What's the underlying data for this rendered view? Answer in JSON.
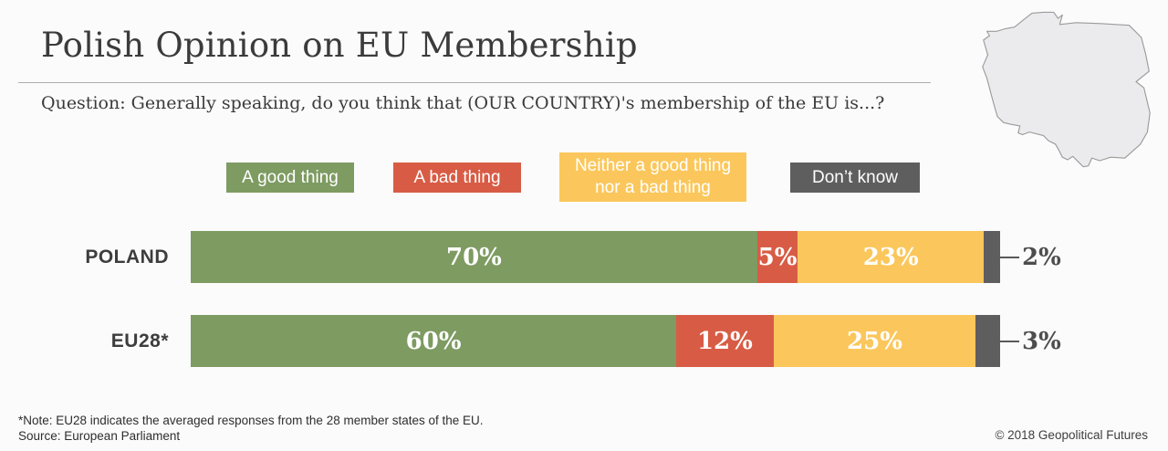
{
  "header": {
    "title": "Polish Opinion on EU Membership",
    "question": "Question: Generally speaking, do you think that (OUR COUNTRY)'s membership of the EU is...?"
  },
  "map": {
    "region": "Poland",
    "fill": "#ebebed",
    "stroke": "#9b9b9b"
  },
  "legend": [
    {
      "label": "A good thing",
      "color": "#7e9b62"
    },
    {
      "label": "A bad thing",
      "color": "#d85c45"
    },
    {
      "label": "Neither a good thing\nnor a bad thing",
      "color": "#fbc75c"
    },
    {
      "label": "Don’t know",
      "color": "#5e5e5e"
    }
  ],
  "chart_data": {
    "type": "bar",
    "orientation": "horizontal-stacked",
    "title": "Polish Opinion on EU Membership",
    "categories": [
      "POLAND",
      "EU28*"
    ],
    "series": [
      {
        "name": "A good thing",
        "color": "#7e9b62",
        "values": [
          70,
          60
        ]
      },
      {
        "name": "A bad thing",
        "color": "#d85c45",
        "values": [
          5,
          12
        ]
      },
      {
        "name": "Neither a good thing nor a bad thing",
        "color": "#fbc75c",
        "values": [
          23,
          25
        ]
      },
      {
        "name": "Don't know",
        "color": "#5e5e5e",
        "values": [
          2,
          3
        ]
      }
    ],
    "value_suffix": "%",
    "xlim": [
      0,
      100
    ],
    "grid": false,
    "legend_position": "top",
    "notes": "Don't know values are labeled outside the bar with a connector line"
  },
  "footer": {
    "note": "*Note: EU28 indicates the averaged responses from the 28 member states of the EU.",
    "source": "Source: European Parliament",
    "copyright": "© 2018 Geopolitical Futures"
  }
}
